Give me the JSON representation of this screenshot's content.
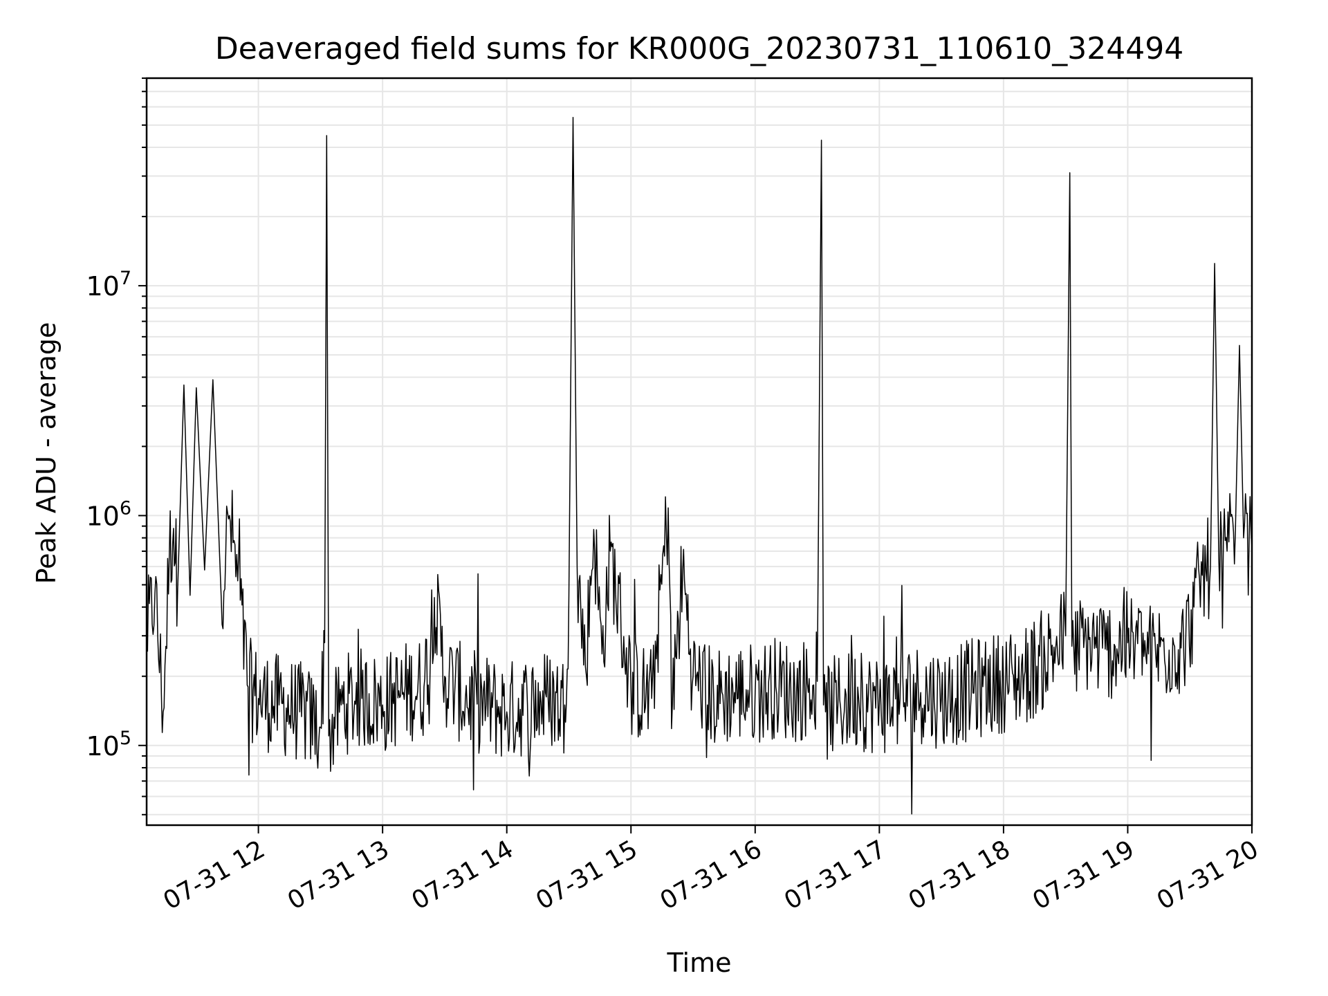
{
  "chart_data": {
    "type": "line",
    "title": "Deaveraged field sums for KR000G_20230731_110610_324494",
    "xlabel": "Time",
    "ylabel": "Peak ADU - average",
    "y_scale": "log",
    "xlim": [
      "2023-07-31 11:06",
      "2023-07-31 20:00"
    ],
    "ylim": [
      45000,
      80000000
    ],
    "grid": true,
    "line_color": "#000000",
    "x_ticks": [
      {
        "value": "2023-07-31 12:00",
        "label": "07-31 12"
      },
      {
        "value": "2023-07-31 13:00",
        "label": "07-31 13"
      },
      {
        "value": "2023-07-31 14:00",
        "label": "07-31 14"
      },
      {
        "value": "2023-07-31 15:00",
        "label": "07-31 15"
      },
      {
        "value": "2023-07-31 16:00",
        "label": "07-31 16"
      },
      {
        "value": "2023-07-31 17:00",
        "label": "07-31 17"
      },
      {
        "value": "2023-07-31 18:00",
        "label": "07-31 18"
      },
      {
        "value": "2023-07-31 19:00",
        "label": "07-31 19"
      },
      {
        "value": "2023-07-31 20:00",
        "label": "07-31 20"
      }
    ],
    "y_ticks": [
      {
        "value": 100000,
        "base": "10",
        "exp": "5"
      },
      {
        "value": 1000000,
        "base": "10",
        "exp": "6"
      },
      {
        "value": 10000000,
        "base": "10",
        "exp": "7"
      }
    ],
    "series": [
      {
        "x": [
          "2023-07-31 11:06",
          "2023-07-31 11:10",
          "2023-07-31 11:14",
          "2023-07-31 11:17",
          "2023-07-31 11:19",
          "2023-07-31 11:21",
          "2023-07-31 11:24",
          "2023-07-31 11:27",
          "2023-07-31 11:30",
          "2023-07-31 11:34",
          "2023-07-31 11:38",
          "2023-07-31 11:42",
          "2023-07-31 11:46",
          "2023-07-31 11:50",
          "2023-07-31 11:55",
          "2023-07-31 12:00",
          "2023-07-31 12:10",
          "2023-07-31 12:20",
          "2023-07-31 12:30",
          "2023-07-31 12:32",
          "2023-07-31 12:33",
          "2023-07-31 12:34",
          "2023-07-31 12:40",
          "2023-07-31 12:50",
          "2023-07-31 13:00",
          "2023-07-31 13:10",
          "2023-07-31 13:20",
          "2023-07-31 13:25",
          "2023-07-31 13:30",
          "2023-07-31 13:40",
          "2023-07-31 13:50",
          "2023-07-31 14:00",
          "2023-07-31 14:10",
          "2023-07-31 14:20",
          "2023-07-31 14:28",
          "2023-07-31 14:30",
          "2023-07-31 14:32",
          "2023-07-31 14:34",
          "2023-07-31 14:38",
          "2023-07-31 14:42",
          "2023-07-31 14:46",
          "2023-07-31 14:50",
          "2023-07-31 15:00",
          "2023-07-31 15:10",
          "2023-07-31 15:18",
          "2023-07-31 15:20",
          "2023-07-31 15:25",
          "2023-07-31 15:30",
          "2023-07-31 15:40",
          "2023-07-31 15:50",
          "2023-07-31 16:00",
          "2023-07-31 16:10",
          "2023-07-31 16:20",
          "2023-07-31 16:30",
          "2023-07-31 16:32",
          "2023-07-31 16:33",
          "2023-07-31 16:34",
          "2023-07-31 16:40",
          "2023-07-31 16:50",
          "2023-07-31 17:00",
          "2023-07-31 17:10",
          "2023-07-31 17:20",
          "2023-07-31 17:30",
          "2023-07-31 17:40",
          "2023-07-31 17:50",
          "2023-07-31 18:00",
          "2023-07-31 18:10",
          "2023-07-31 18:20",
          "2023-07-31 18:30",
          "2023-07-31 18:32",
          "2023-07-31 18:33",
          "2023-07-31 18:34",
          "2023-07-31 18:40",
          "2023-07-31 18:50",
          "2023-07-31 19:00",
          "2023-07-31 19:10",
          "2023-07-31 19:20",
          "2023-07-31 19:28",
          "2023-07-31 19:32",
          "2023-07-31 19:36",
          "2023-07-31 19:40",
          "2023-07-31 19:42",
          "2023-07-31 19:44",
          "2023-07-31 19:48",
          "2023-07-31 19:52",
          "2023-07-31 19:54",
          "2023-07-31 19:56",
          "2023-07-31 20:00"
        ],
        "y": [
          300000,
          460000,
          140000,
          700000,
          880000,
          480000,
          3700000,
          450000,
          3600000,
          580000,
          3900000,
          450000,
          1000000,
          520000,
          180000,
          160000,
          150000,
          140000,
          120000,
          280000,
          45000000,
          110000,
          150000,
          160000,
          150000,
          170000,
          180000,
          440000,
          200000,
          160000,
          150000,
          140000,
          150000,
          160000,
          150000,
          450000,
          54000000,
          600000,
          220000,
          870000,
          250000,
          700000,
          180000,
          160000,
          1080000,
          150000,
          580000,
          200000,
          160000,
          170000,
          170000,
          180000,
          170000,
          190000,
          43000000,
          150000,
          140000,
          150000,
          160000,
          150000,
          160000,
          170000,
          160000,
          170000,
          180000,
          190000,
          200000,
          240000,
          300000,
          31000000,
          270000,
          260000,
          280000,
          260000,
          280000,
          250000,
          260000,
          280000,
          400000,
          550000,
          600000,
          12500000,
          650000,
          700000,
          850000,
          5500000,
          800000,
          720000
        ]
      }
    ]
  }
}
